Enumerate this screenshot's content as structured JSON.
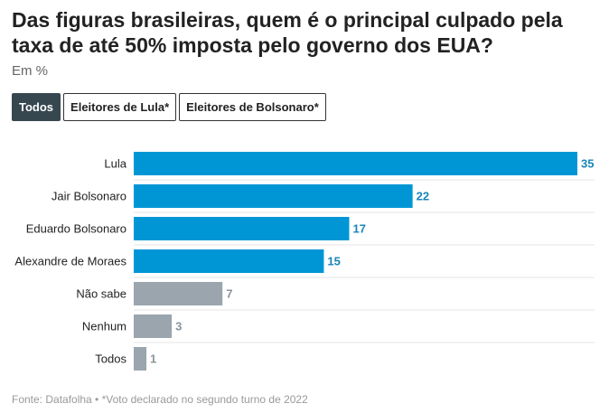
{
  "title": "Das figuras brasileiras, quem é o principal culpado pela taxa de até 50% imposta pelo governo dos EUA?",
  "subtitle": "Em %",
  "tabs": [
    {
      "label": "Todos",
      "active": true
    },
    {
      "label": "Eleitores de Lula*",
      "active": false
    },
    {
      "label": "Eleitores de Bolsonaro*",
      "active": false
    }
  ],
  "chart_data": {
    "type": "bar",
    "orientation": "horizontal",
    "categories": [
      "Lula",
      "Jair Bolsonaro",
      "Eduardo Bolsonaro",
      "Alexandre de Moraes",
      "Não sabe",
      "Nenhum",
      "Todos"
    ],
    "values": [
      35,
      22,
      17,
      15,
      7,
      3,
      1
    ],
    "colors": [
      "#0096d6",
      "#0096d6",
      "#0096d6",
      "#0096d6",
      "#9aa5ae",
      "#9aa5ae",
      "#9aa5ae"
    ],
    "label_colors": [
      "#1a85b8",
      "#1a85b8",
      "#1a85b8",
      "#1a85b8",
      "#8a949c",
      "#8a949c",
      "#8a949c"
    ],
    "xlim": [
      0,
      35
    ],
    "grid": "horizontal separators"
  },
  "footer": "Fonte: Datafolha • *Voto declarado no segundo turno de 2022"
}
